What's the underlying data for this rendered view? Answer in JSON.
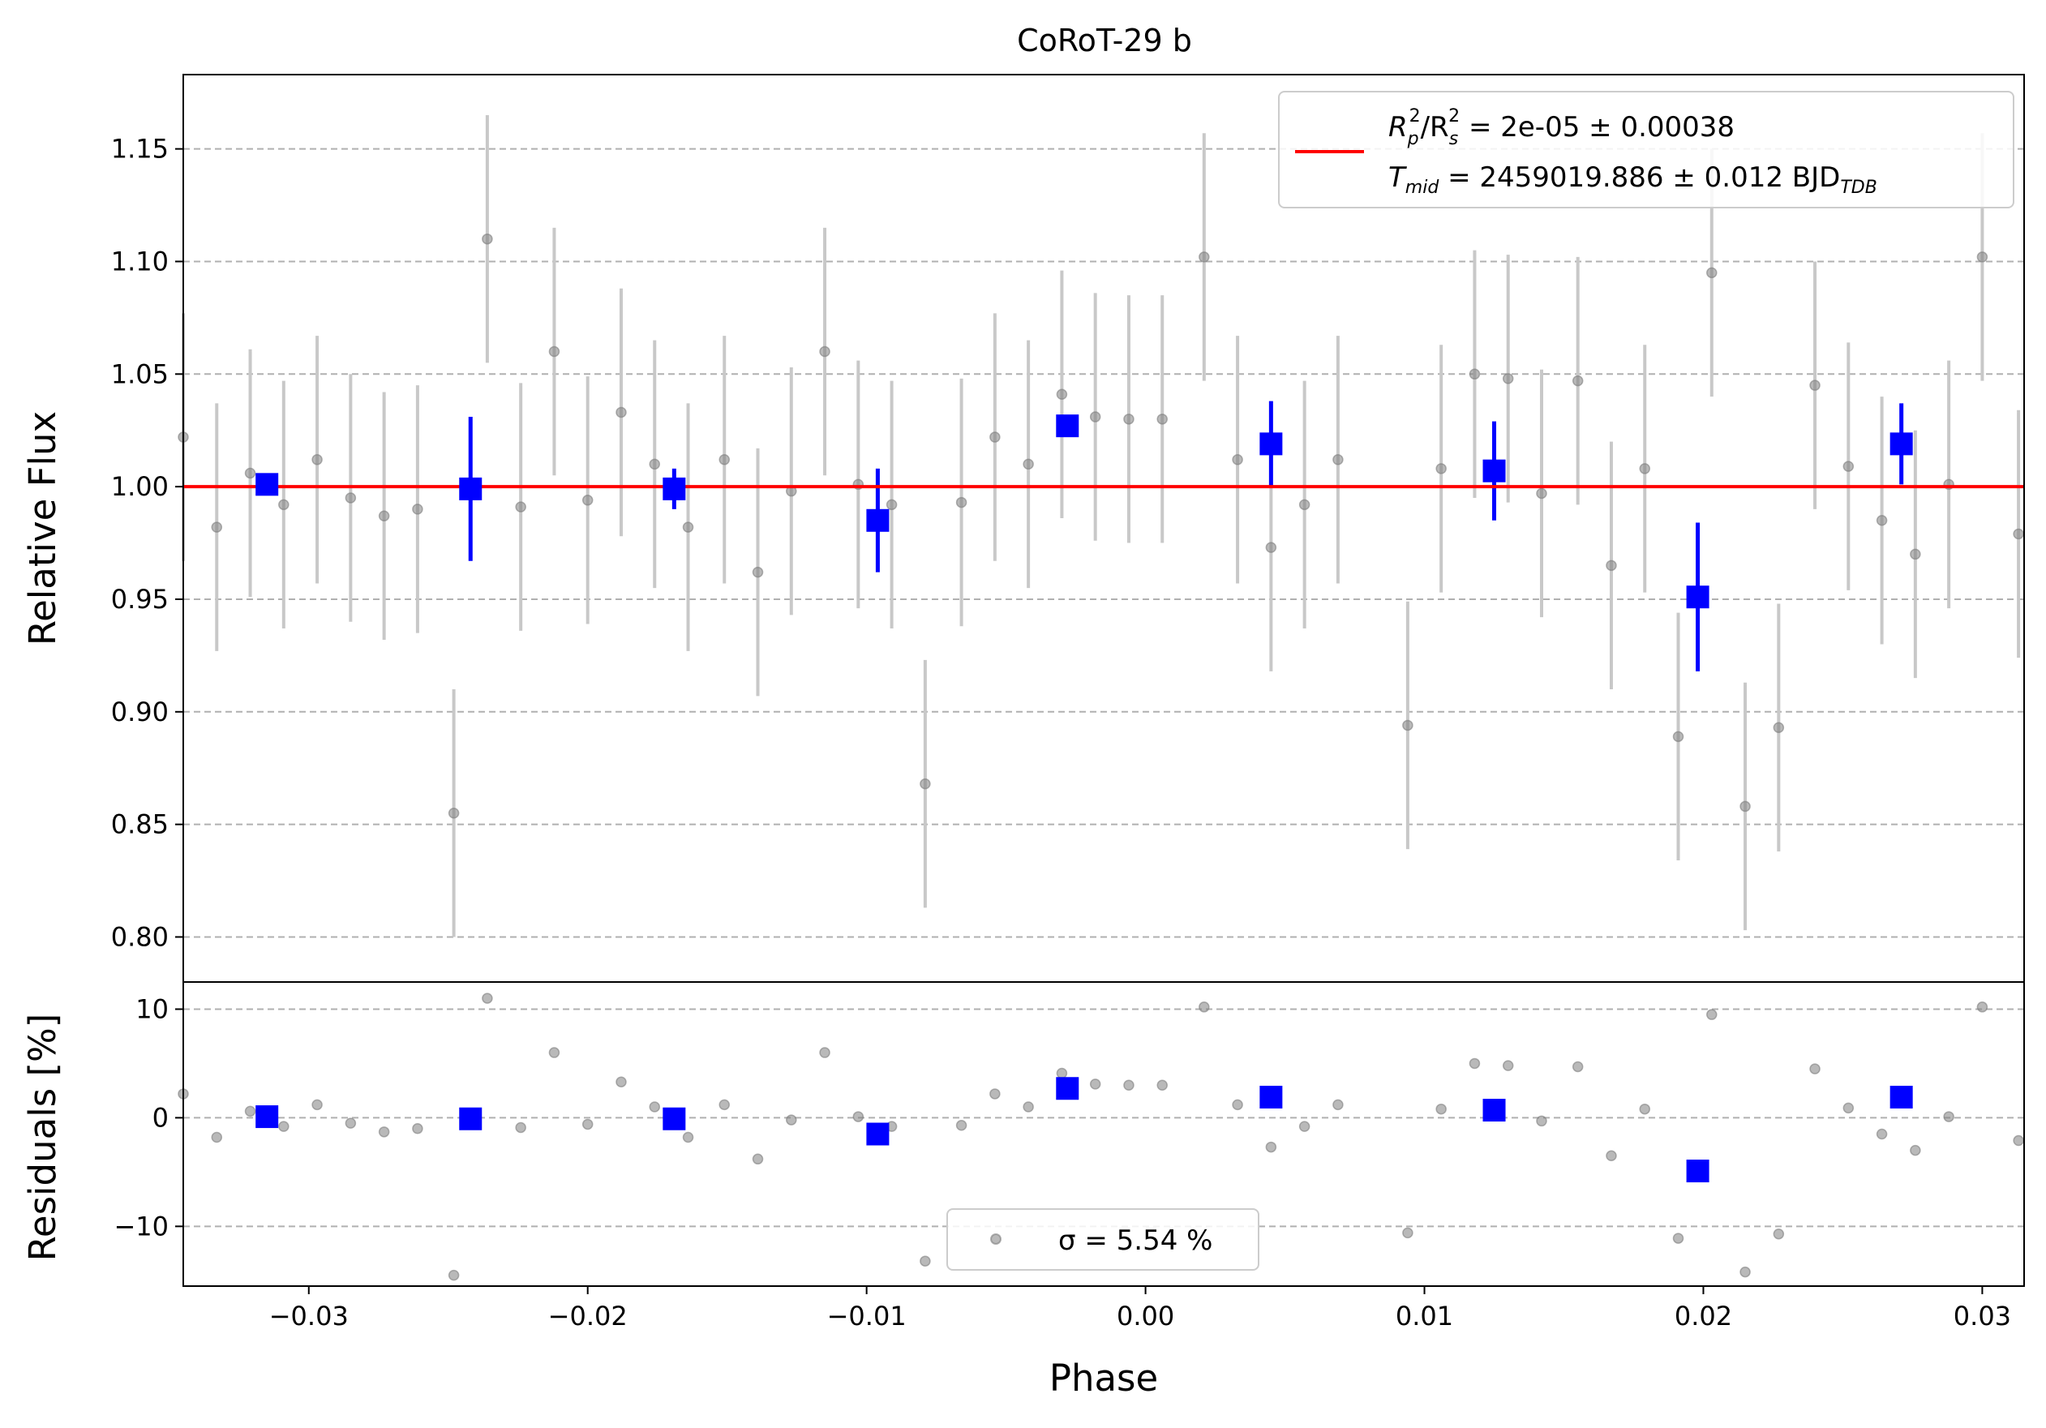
{
  "title": "CoRoT-29 b",
  "colors": {
    "raw": "#7f7f7f",
    "raw_err": "#c8c8c8",
    "binned": "#0000ff",
    "model": "#ff0000",
    "grid": "#b0b0b0"
  },
  "legend_top": {
    "placement": "upper-right",
    "line1": {
      "label": "R",
      "sub1": "p",
      "sup1": "2",
      "sep": "/R",
      "sub2": "s",
      "sup2": "2",
      "rest": " = 2e-05 ± 0.00038"
    },
    "line2": {
      "label": "T",
      "sub": "mid",
      "rest": " = 2459019.886 ± 0.012 BJD",
      "sub2": "TDB"
    }
  },
  "legend_bottom": {
    "placement": "lower-center",
    "label": "σ = 5.54 %"
  },
  "chart_data": [
    {
      "type": "scatter",
      "panel": "flux",
      "xlabel": "",
      "ylabel": "Relative Flux",
      "xlim": [
        -0.0345,
        0.0315
      ],
      "ylim": [
        0.78,
        1.183
      ],
      "yticks": [
        0.8,
        0.85,
        0.9,
        0.95,
        1.0,
        1.05,
        1.1,
        1.15
      ],
      "ytick_labels": [
        "0.80",
        "0.85",
        "0.90",
        "0.95",
        "1.00",
        "1.05",
        "1.10",
        "1.15"
      ],
      "grid": "y-dashed",
      "model_y": 1.0,
      "raw": {
        "err": 0.055,
        "x": [
          -0.0345,
          -0.0333,
          -0.0321,
          -0.0309,
          -0.0297,
          -0.0285,
          -0.0273,
          -0.0261,
          -0.0248,
          -0.0236,
          -0.0224,
          -0.0212,
          -0.02,
          -0.0188,
          -0.0176,
          -0.0164,
          -0.0151,
          -0.0139,
          -0.0127,
          -0.0115,
          -0.0103,
          -0.0091,
          -0.0079,
          -0.0066,
          -0.0054,
          -0.0042,
          -0.003,
          -0.0018,
          -0.0006,
          0.0006,
          0.0021,
          0.0033,
          0.0045,
          0.0057,
          0.0069,
          0.0094,
          0.0106,
          0.0118,
          0.013,
          0.0142,
          0.0155,
          0.0167,
          0.0179,
          0.0191,
          0.0203,
          0.0215,
          0.0227,
          0.024,
          0.0252,
          0.0264,
          0.0276,
          0.0288,
          0.03,
          0.0313
        ],
        "y": [
          1.022,
          0.982,
          1.006,
          0.992,
          1.012,
          0.995,
          0.987,
          0.99,
          0.855,
          1.11,
          0.991,
          1.06,
          0.994,
          1.033,
          1.01,
          0.982,
          1.012,
          0.962,
          0.998,
          1.06,
          1.001,
          0.992,
          0.868,
          0.993,
          1.022,
          1.01,
          1.041,
          1.031,
          1.03,
          1.03,
          1.102,
          1.012,
          0.973,
          0.992,
          1.012,
          0.894,
          1.008,
          1.05,
          1.048,
          0.997,
          1.047,
          0.965,
          1.008,
          0.889,
          1.095,
          0.858,
          0.893,
          1.045,
          1.009,
          0.985,
          0.97,
          1.001,
          1.102,
          0.979
        ]
      },
      "binned": {
        "x": [
          -0.0315,
          -0.0242,
          -0.0169,
          -0.0096,
          -0.0028,
          0.0045,
          0.0125,
          0.0198,
          0.0271
        ],
        "y": [
          1.001,
          0.999,
          0.999,
          0.985,
          1.027,
          1.019,
          1.007,
          0.951,
          1.019
        ],
        "err": [
          0.004,
          0.032,
          0.009,
          0.023,
          0.0,
          0.019,
          0.022,
          0.033,
          0.018
        ]
      }
    },
    {
      "type": "scatter",
      "panel": "residuals",
      "xlabel": "Phase",
      "ylabel": "Residuals [%]",
      "xlim": [
        -0.0345,
        0.0315
      ],
      "ylim": [
        -15.5,
        12.5
      ],
      "xticks": [
        -0.03,
        -0.02,
        -0.01,
        0.0,
        0.01,
        0.02,
        0.03
      ],
      "xtick_labels": [
        "−0.03",
        "−0.02",
        "−0.01",
        "0.00",
        "0.01",
        "0.02",
        "0.03"
      ],
      "yticks": [
        -10,
        0,
        10
      ],
      "ytick_labels": [
        "−10",
        "0",
        "10"
      ],
      "grid": "y-dashed",
      "raw": {
        "x": [
          -0.0345,
          -0.0333,
          -0.0321,
          -0.0309,
          -0.0297,
          -0.0285,
          -0.0273,
          -0.0261,
          -0.0248,
          -0.0236,
          -0.0224,
          -0.0212,
          -0.02,
          -0.0188,
          -0.0176,
          -0.0164,
          -0.0151,
          -0.0139,
          -0.0127,
          -0.0115,
          -0.0103,
          -0.0091,
          -0.0079,
          -0.0066,
          -0.0054,
          -0.0042,
          -0.003,
          -0.0018,
          -0.0006,
          0.0006,
          0.0021,
          0.0033,
          0.0045,
          0.0057,
          0.0069,
          0.0094,
          0.0106,
          0.0118,
          0.013,
          0.0142,
          0.0155,
          0.0167,
          0.0179,
          0.0191,
          0.0203,
          0.0215,
          0.0227,
          0.024,
          0.0252,
          0.0264,
          0.0276,
          0.0288,
          0.03,
          0.0313
        ],
        "y": [
          2.2,
          -1.8,
          0.6,
          -0.8,
          1.2,
          -0.5,
          -1.3,
          -1.0,
          -14.5,
          11.0,
          -0.9,
          6.0,
          -0.6,
          3.3,
          1.0,
          -1.8,
          1.2,
          -3.8,
          -0.2,
          6.0,
          0.1,
          -0.8,
          -13.2,
          -0.7,
          2.2,
          1.0,
          4.1,
          3.1,
          3.0,
          3.0,
          10.2,
          1.2,
          -2.7,
          -0.8,
          1.2,
          -10.6,
          0.8,
          5.0,
          4.8,
          -0.3,
          4.7,
          -3.5,
          0.8,
          -11.1,
          9.5,
          -14.2,
          -10.7,
          4.5,
          0.9,
          -1.5,
          -3.0,
          0.1,
          10.2,
          -2.1
        ]
      },
      "binned": {
        "x": [
          -0.0315,
          -0.0242,
          -0.0169,
          -0.0096,
          -0.0028,
          0.0045,
          0.0125,
          0.0198,
          0.0271
        ],
        "y": [
          0.1,
          -0.1,
          -0.1,
          -1.5,
          2.7,
          1.9,
          0.7,
          -4.9,
          1.9
        ]
      }
    }
  ]
}
